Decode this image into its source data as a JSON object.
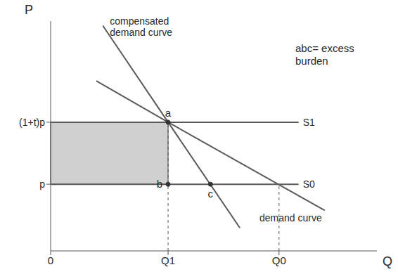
{
  "chart_data": {
    "type": "line",
    "x_label": "Q",
    "y_label": "P",
    "xlim": [
      0,
      10
    ],
    "ylim": [
      0,
      10
    ],
    "xticks": [
      0,
      {
        "value": 3.6,
        "label": "Q1"
      },
      {
        "value": 7.0,
        "label": "Q0"
      }
    ],
    "yticks": [
      {
        "value": 2.9,
        "label": "p"
      },
      {
        "value": 5.6,
        "label": "(1+t)p"
      }
    ],
    "series": [
      {
        "name": "S1",
        "color": "#5a5a5a",
        "x": [
          0,
          7.6
        ],
        "values": [
          5.6,
          5.6
        ]
      },
      {
        "name": "S0",
        "color": "#5a5a5a",
        "x": [
          0,
          7.6
        ],
        "values": [
          2.9,
          2.9
        ]
      },
      {
        "name": "compensated demand curve",
        "color": "#5a5a5a",
        "x": [
          1.6,
          3.6,
          5.8
        ],
        "values": [
          9.8,
          5.6,
          1.0
        ]
      },
      {
        "name": "demand curve",
        "color": "#5a5a5a",
        "x": [
          1.4,
          3.6,
          8.4
        ],
        "values": [
          7.4,
          5.6,
          1.76
        ]
      }
    ],
    "points": [
      {
        "label": "a",
        "x": 3.6,
        "y": 5.6
      },
      {
        "label": "b",
        "x": 3.6,
        "y": 2.9
      },
      {
        "label": "c",
        "x": 4.9,
        "y": 2.9
      }
    ],
    "drop_lines": [
      {
        "x": 3.6,
        "y": 5.6
      },
      {
        "x": 7.0,
        "y": 2.9
      }
    ],
    "shaded_area": {
      "x": [
        0,
        3.6
      ],
      "y": [
        2.9,
        5.6
      ],
      "color": "#8a8a8a"
    },
    "annotations": [
      "abc= excess burden"
    ]
  }
}
